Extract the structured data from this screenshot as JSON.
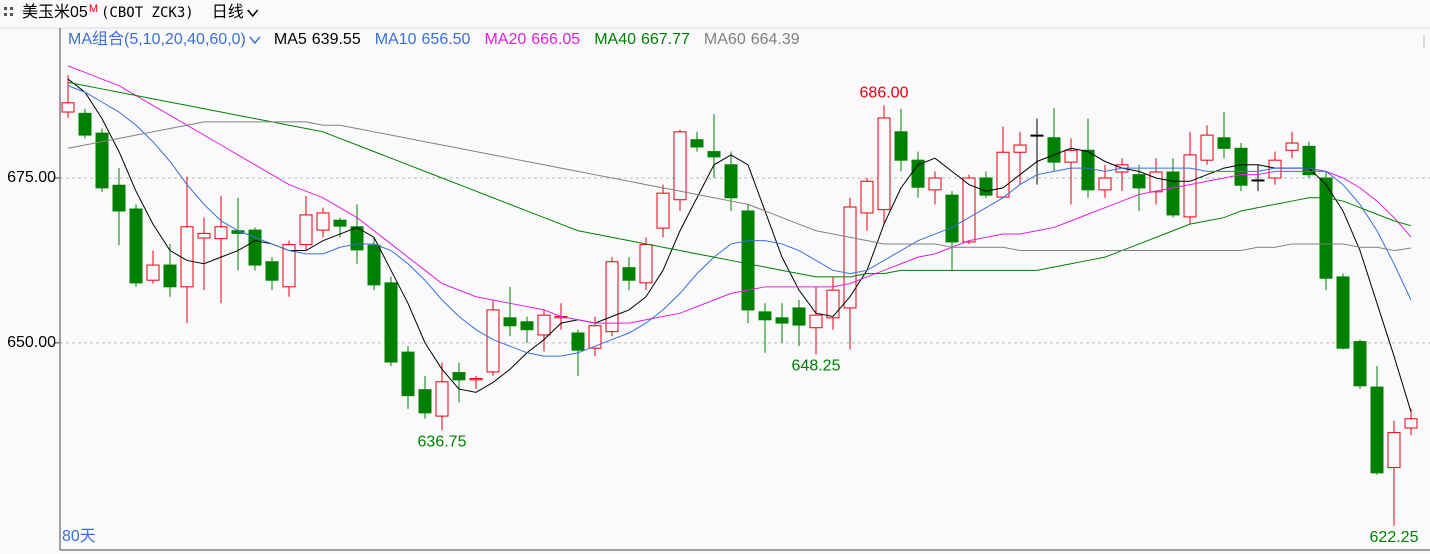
{
  "chart_data": {
    "type": "candlestick",
    "header": {
      "symbol": "美玉米05",
      "badge": "M",
      "code": "(CBOT ZCK3)",
      "period": "日线"
    },
    "ma_group": "MA组合(5,10,20,40,60,0)",
    "period_label": "80天",
    "up_color": "#e8000b",
    "down_color": "#008000",
    "flat_color": "#000000",
    "ylim": [
      618.6,
      694.1
    ],
    "yticks": [
      {
        "value": 650,
        "label": "650.00"
      },
      {
        "value": 675,
        "label": "675.00"
      }
    ],
    "grid": true,
    "open": [
      685.0,
      684.8,
      681.8,
      673.9,
      670.3,
      659.5,
      661.8,
      658.5,
      665.9,
      665.8,
      667.0,
      667.1,
      662.3,
      658.5,
      664.9,
      667.1,
      668.6,
      667.6,
      664.8,
      659.1,
      648.6,
      642.9,
      638.9,
      645.5,
      644.4,
      645.6,
      653.8,
      653.2,
      651.2,
      653.8,
      651.5,
      649.2,
      651.7,
      661.4,
      659.1,
      667.4,
      671.7,
      680.8,
      679.0,
      677.0,
      670.0,
      654.7,
      653.8,
      655.3,
      652.3,
      653.8,
      655.3,
      669.7,
      670.2,
      682.0,
      677.7,
      673.2,
      672.4,
      665.3,
      675.0,
      672.1,
      678.9,
      681.5,
      681.1,
      677.4,
      679.2,
      673.2,
      675.9,
      675.5,
      672.9,
      675.9,
      669.1,
      677.7,
      681.1,
      679.5,
      674.7,
      675.0,
      679.2,
      679.8,
      675.0,
      660.0,
      650.2,
      643.3,
      631.1,
      637.1
    ],
    "high": [
      690.6,
      685.5,
      682.5,
      676.5,
      671.0,
      664.0,
      665.0,
      675.2,
      669.0,
      672.3,
      672.0,
      667.5,
      663.0,
      665.5,
      672.3,
      670.5,
      669.0,
      671.0,
      666.0,
      660.0,
      649.5,
      645.0,
      647.0,
      647.0,
      645.0,
      656.5,
      658.5,
      654.0,
      655.0,
      656.0,
      652.0,
      654.0,
      663.0,
      663.0,
      666.0,
      674.0,
      682.3,
      682.0,
      684.7,
      679.0,
      671.0,
      656.0,
      656.0,
      656.5,
      658.5,
      660.0,
      672.0,
      675.0,
      686.0,
      685.5,
      679.0,
      676.0,
      673.0,
      675.5,
      676.0,
      682.8,
      682.0,
      684.0,
      685.6,
      681.0,
      684.0,
      677.0,
      678.0,
      677.0,
      678.0,
      678.0,
      682.0,
      683.0,
      685.0,
      680.3,
      677.0,
      679.0,
      682.0,
      680.5,
      676.0,
      660.5,
      650.5,
      646.5,
      638.2,
      640.0
    ],
    "low": [
      684.1,
      681.0,
      672.9,
      664.8,
      658.5,
      659.0,
      657.0,
      653.0,
      658.0,
      656.0,
      661.0,
      661.0,
      658.0,
      657.0,
      664.0,
      666.0,
      666.0,
      662.0,
      658.0,
      646.5,
      640.0,
      638.5,
      636.75,
      641.0,
      643.0,
      645.0,
      651.0,
      650.0,
      648.7,
      652.0,
      645.0,
      648.0,
      651.0,
      658.0,
      658.0,
      666.0,
      670.0,
      679.0,
      675.0,
      670.0,
      653.0,
      648.5,
      650.0,
      649.5,
      648.25,
      652.0,
      649.0,
      667.0,
      668.0,
      676.0,
      672.0,
      671.0,
      661.0,
      665.0,
      672.0,
      672.0,
      674.0,
      674.0,
      676.0,
      671.0,
      672.0,
      672.0,
      673.0,
      670.0,
      671.0,
      669.0,
      668.0,
      677.0,
      678.0,
      673.0,
      673.0,
      674.0,
      678.0,
      675.0,
      658.0,
      649.0,
      643.0,
      630.0,
      622.25,
      636.0
    ],
    "close": [
      686.4,
      681.5,
      673.5,
      670.0,
      659.1,
      661.8,
      658.5,
      667.6,
      666.6,
      667.6,
      666.6,
      661.8,
      659.5,
      664.9,
      669.4,
      669.7,
      667.7,
      664.1,
      658.8,
      647.1,
      642.0,
      639.4,
      644.1,
      644.4,
      644.6,
      655.0,
      652.6,
      652.0,
      654.2,
      654.0,
      648.9,
      652.6,
      662.3,
      659.5,
      664.9,
      672.7,
      682.0,
      679.7,
      678.2,
      672.0,
      655.0,
      653.5,
      653.0,
      652.7,
      654.2,
      658.0,
      670.6,
      674.5,
      684.1,
      677.7,
      673.6,
      675.0,
      665.3,
      675.0,
      672.4,
      678.9,
      680.0,
      681.5,
      677.4,
      679.2,
      673.2,
      675.0,
      677.0,
      673.5,
      675.9,
      669.4,
      678.5,
      681.5,
      679.5,
      673.9,
      674.7,
      677.7,
      680.3,
      675.5,
      659.8,
      649.2,
      643.5,
      630.3,
      636.4,
      638.5
    ],
    "series": [
      {
        "name": "MA5",
        "color": "#000000",
        "legend_value": "639.55",
        "values": [
          690,
          688,
          684,
          679,
          673,
          668,
          664,
          662.5,
          662,
          663,
          664,
          665.5,
          665,
          664,
          664,
          665.5,
          666.5,
          667.5,
          666,
          661,
          656,
          650,
          646,
          643,
          642.5,
          644,
          646,
          648.5,
          650.5,
          653,
          653.5,
          653,
          654,
          655,
          657,
          661,
          667,
          672,
          677,
          678.5,
          677,
          670,
          663,
          658,
          654.5,
          654,
          657,
          661,
          668,
          673.5,
          677,
          678,
          676,
          674,
          673,
          673.5,
          675.5,
          677.5,
          678.5,
          679.5,
          679,
          677.5,
          676.5,
          676,
          675,
          674.5,
          674.5,
          675.5,
          676.5,
          677,
          677,
          676.5,
          676.5,
          676.5,
          674,
          670,
          664,
          656,
          648,
          639.55
        ]
      },
      {
        "name": "MA10",
        "color": "#3a6fd8",
        "legend_value": "656.50",
        "values": [
          689,
          688,
          686.5,
          685,
          683,
          680.5,
          677.5,
          674,
          671,
          668.5,
          667,
          666,
          665,
          664,
          663.5,
          663.5,
          664.5,
          665,
          665,
          664,
          662,
          659.5,
          656.5,
          654,
          652,
          650.5,
          649.5,
          648.5,
          648,
          648,
          648.5,
          649.5,
          650.5,
          651.5,
          653,
          655,
          657.5,
          660.5,
          663,
          665,
          665.5,
          665.5,
          665,
          664,
          662.5,
          661,
          660.5,
          661,
          662.5,
          664,
          665.5,
          666.5,
          667.5,
          669,
          670.5,
          672,
          674,
          675.5,
          676,
          676.5,
          676.5,
          676,
          676.5,
          676.5,
          676.5,
          676.5,
          676.5,
          676,
          676,
          676,
          676,
          676.5,
          676.5,
          676.5,
          676,
          674,
          671,
          667,
          662,
          656.5
        ]
      },
      {
        "name": "MA20",
        "color": "#e020e0",
        "legend_value": "666.05",
        "values": [
          692,
          691,
          690,
          689,
          687.5,
          686,
          684.5,
          683,
          681.5,
          680,
          678.5,
          677,
          675.5,
          674,
          673,
          672,
          670.5,
          669,
          667,
          665,
          663,
          661,
          659,
          658,
          657,
          656.5,
          656,
          655.5,
          655,
          654,
          653.5,
          653,
          653,
          653,
          653.5,
          654,
          654.5,
          655.5,
          656.5,
          657.5,
          658,
          658.5,
          658.5,
          658.5,
          658.5,
          658.5,
          659,
          660,
          661,
          662,
          663,
          663.5,
          664.5,
          665.5,
          666,
          666.5,
          666.5,
          667,
          667.5,
          668.5,
          669.5,
          670.5,
          671.5,
          672.5,
          673,
          673.5,
          674,
          674.5,
          675,
          675.5,
          675.5,
          676,
          676,
          676,
          676,
          675,
          673.5,
          671.5,
          669,
          666.05
        ]
      },
      {
        "name": "MA40",
        "color": "#008000",
        "legend_value": "667.77",
        "values": [
          689.5,
          689,
          688.5,
          688,
          687.5,
          687,
          686.5,
          686,
          685.5,
          685,
          684.5,
          684,
          683.5,
          683,
          682.5,
          682,
          681,
          680,
          679,
          678,
          677,
          676,
          675,
          674,
          673,
          672,
          671,
          670,
          669,
          668,
          667,
          666.5,
          666,
          665.5,
          665,
          664.5,
          664,
          663.5,
          663,
          662.5,
          662,
          661.5,
          661,
          660.5,
          660,
          660,
          660,
          660.5,
          660.5,
          661,
          661,
          661,
          661,
          661,
          661,
          661,
          661,
          661,
          661.5,
          662,
          662.5,
          663,
          664,
          665,
          666,
          667,
          668,
          668.5,
          669,
          670,
          670.5,
          671,
          671.5,
          672,
          672,
          671.5,
          670.5,
          669.5,
          668.5,
          667.77
        ]
      },
      {
        "name": "MA60",
        "color": "#808080",
        "legend_value": "664.39",
        "values": [
          679.5,
          680,
          680.5,
          681,
          681.5,
          682,
          682.5,
          683,
          683.5,
          683.5,
          683.5,
          683.5,
          683.5,
          683.5,
          683.5,
          683,
          683,
          682.5,
          682,
          681.5,
          681,
          680.5,
          680,
          679.5,
          679,
          678.5,
          678,
          677.5,
          677,
          676.5,
          676,
          675.5,
          675,
          674.5,
          674,
          673.5,
          673,
          672.5,
          672,
          671.5,
          671,
          670,
          669,
          668,
          667,
          666.5,
          666,
          665.5,
          665,
          665,
          665,
          665,
          664.5,
          664.5,
          664.5,
          664.5,
          664,
          664,
          664,
          664,
          664,
          664,
          664,
          664,
          664,
          664,
          664,
          664,
          664,
          664,
          664.5,
          664.5,
          665,
          665,
          665,
          665,
          664.5,
          664.5,
          664,
          664.39
        ]
      }
    ],
    "annotations": [
      {
        "label": "686.00",
        "value": 686,
        "color": "#e8000b"
      },
      {
        "label": "636.75",
        "value": 636.75,
        "color": "#008000"
      },
      {
        "label": "648.25",
        "value": 648.25,
        "color": "#008000"
      },
      {
        "label": "622.25",
        "value": 622.25,
        "color": "#008000"
      }
    ]
  }
}
